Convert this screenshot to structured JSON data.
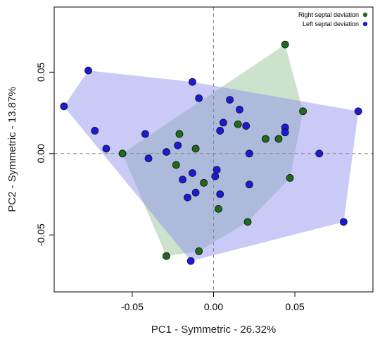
{
  "chart_data": {
    "type": "scatter",
    "xlabel": "PC1 - Symmetric - 26.32%",
    "ylabel": "PC2 - Symmetric - 13.87%",
    "xlim": [
      -0.098,
      0.098
    ],
    "ylim": [
      -0.085,
      0.09
    ],
    "xticks": [
      -0.05,
      0,
      0.05
    ],
    "xtick_labels": [
      "-0.05",
      "0.00",
      "0.05"
    ],
    "yticks": [
      -0.05,
      0,
      0.05
    ],
    "ytick_labels": [
      "-0.05",
      "0.00",
      "0.05"
    ],
    "reference_lines": {
      "x": 0,
      "y": 0,
      "style": "dashed"
    },
    "legend_position": "top-right",
    "series": [
      {
        "name": "Right septal deviation",
        "color": "#1e6b1e",
        "hull_color": "#8fbf8f",
        "points": [
          [
            0.044,
            0.067
          ],
          [
            0.055,
            0.026
          ],
          [
            0.015,
            0.018
          ],
          [
            0.032,
            0.009
          ],
          [
            0.04,
            0.009
          ],
          [
            -0.021,
            0.012
          ],
          [
            -0.011,
            0.003
          ],
          [
            -0.056,
            0.0
          ],
          [
            -0.023,
            -0.007
          ],
          [
            -0.006,
            -0.018
          ],
          [
            0.047,
            -0.015
          ],
          [
            0.003,
            -0.034
          ],
          [
            0.021,
            -0.042
          ],
          [
            -0.029,
            -0.063
          ],
          [
            -0.009,
            -0.06
          ]
        ]
      },
      {
        "name": "Left septal deviation",
        "color": "#1a1adb",
        "hull_color": "#8a8aee",
        "points": [
          [
            -0.077,
            0.051
          ],
          [
            -0.092,
            0.029
          ],
          [
            -0.073,
            0.014
          ],
          [
            -0.066,
            0.003
          ],
          [
            -0.042,
            0.012
          ],
          [
            -0.04,
            -0.003
          ],
          [
            -0.013,
            0.044
          ],
          [
            -0.009,
            0.034
          ],
          [
            0.01,
            0.033
          ],
          [
            0.016,
            0.027
          ],
          [
            0.006,
            0.019
          ],
          [
            0.004,
            0.014
          ],
          [
            0.02,
            0.017
          ],
          [
            0.044,
            0.016
          ],
          [
            0.044,
            0.013
          ],
          [
            0.089,
            0.026
          ],
          [
            0.022,
            0.0
          ],
          [
            0.065,
            0.0
          ],
          [
            -0.022,
            0.005
          ],
          [
            -0.029,
            0.001
          ],
          [
            -0.013,
            -0.012
          ],
          [
            -0.019,
            -0.016
          ],
          [
            0.002,
            -0.01
          ],
          [
            0.001,
            -0.014
          ],
          [
            0.022,
            -0.019
          ],
          [
            -0.011,
            -0.024
          ],
          [
            -0.016,
            -0.027
          ],
          [
            0.004,
            -0.025
          ],
          [
            0.08,
            -0.042
          ],
          [
            -0.014,
            -0.066
          ]
        ]
      }
    ]
  }
}
